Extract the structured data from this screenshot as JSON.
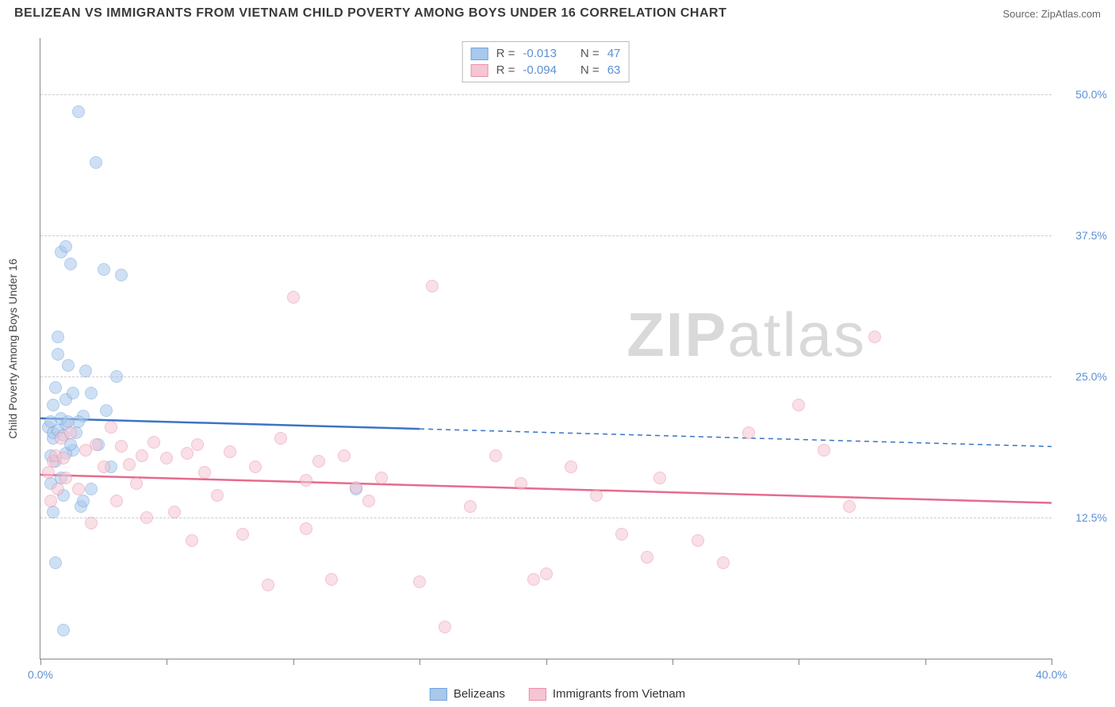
{
  "header": {
    "title": "BELIZEAN VS IMMIGRANTS FROM VIETNAM CHILD POVERTY AMONG BOYS UNDER 16 CORRELATION CHART",
    "source": "Source: ZipAtlas.com"
  },
  "watermark": {
    "part1": "ZIP",
    "part2": "atlas"
  },
  "chart": {
    "type": "scatter",
    "ylabel": "Child Poverty Among Boys Under 16",
    "xlim": [
      0,
      40
    ],
    "ylim": [
      0,
      55
    ],
    "x_ticks": [
      0,
      5,
      10,
      15,
      20,
      25,
      30,
      35,
      40
    ],
    "x_tick_labels": {
      "0": "0.0%",
      "40": "40.0%"
    },
    "y_gridlines": [
      12.5,
      25.0,
      37.5,
      50.0
    ],
    "y_tick_labels": [
      "12.5%",
      "25.0%",
      "37.5%",
      "50.0%"
    ],
    "background_color": "#ffffff",
    "grid_color": "#cccccc",
    "axis_color": "#888888",
    "tick_label_color": "#5b8fd6",
    "marker_radius": 8,
    "marker_opacity": 0.55,
    "series": [
      {
        "name": "Belizeans",
        "fill": "#a9c8ec",
        "stroke": "#6fa3dc",
        "line_color": "#3b74c4",
        "R": "-0.013",
        "N": "47",
        "trend": {
          "y_at_x0": 21.3,
          "y_at_x40": 18.8,
          "solid_until_x": 15
        },
        "points": [
          [
            0.3,
            20.5
          ],
          [
            0.4,
            21.0
          ],
          [
            0.5,
            19.5
          ],
          [
            0.5,
            22.5
          ],
          [
            0.6,
            17.5
          ],
          [
            0.6,
            24.0
          ],
          [
            0.7,
            27.0
          ],
          [
            0.7,
            28.5
          ],
          [
            0.8,
            16.0
          ],
          [
            0.8,
            36.0
          ],
          [
            0.9,
            14.5
          ],
          [
            1.0,
            36.5
          ],
          [
            1.0,
            23.0
          ],
          [
            1.1,
            26.0
          ],
          [
            1.2,
            35.0
          ],
          [
            1.3,
            18.5
          ],
          [
            1.4,
            20.0
          ],
          [
            1.5,
            48.5
          ],
          [
            1.6,
            13.5
          ],
          [
            1.7,
            21.5
          ],
          [
            1.8,
            25.5
          ],
          [
            2.0,
            15.0
          ],
          [
            2.2,
            44.0
          ],
          [
            2.3,
            19.0
          ],
          [
            2.5,
            34.5
          ],
          [
            2.6,
            22.0
          ],
          [
            2.8,
            17.0
          ],
          [
            3.0,
            25.0
          ],
          [
            3.2,
            34.0
          ],
          [
            1.0,
            20.8
          ],
          [
            0.6,
            8.5
          ],
          [
            0.9,
            2.5
          ],
          [
            1.3,
            23.5
          ],
          [
            1.5,
            21.0
          ],
          [
            0.4,
            18.0
          ],
          [
            0.5,
            20.0
          ],
          [
            0.7,
            20.2
          ],
          [
            0.8,
            21.3
          ],
          [
            0.9,
            19.8
          ],
          [
            1.0,
            18.2
          ],
          [
            1.1,
            21.0
          ],
          [
            1.2,
            19.0
          ],
          [
            0.4,
            15.5
          ],
          [
            0.5,
            13.0
          ],
          [
            2.0,
            23.5
          ],
          [
            1.7,
            14.0
          ],
          [
            12.5,
            15.0
          ]
        ]
      },
      {
        "name": "Immigrants from Vietnam",
        "fill": "#f5c5d3",
        "stroke": "#e98fa9",
        "line_color": "#e56b8c",
        "R": "-0.094",
        "N": "63",
        "trend": {
          "y_at_x0": 16.3,
          "y_at_x40": 13.8,
          "solid_until_x": 40
        },
        "points": [
          [
            0.5,
            17.5
          ],
          [
            0.6,
            18.0
          ],
          [
            0.8,
            19.5
          ],
          [
            1.0,
            16.0
          ],
          [
            1.2,
            20.0
          ],
          [
            1.5,
            15.0
          ],
          [
            1.8,
            18.5
          ],
          [
            2.0,
            12.0
          ],
          [
            2.2,
            19.0
          ],
          [
            2.5,
            17.0
          ],
          [
            2.8,
            20.5
          ],
          [
            3.0,
            14.0
          ],
          [
            3.2,
            18.8
          ],
          [
            3.5,
            17.2
          ],
          [
            3.8,
            15.5
          ],
          [
            4.0,
            18.0
          ],
          [
            4.2,
            12.5
          ],
          [
            4.5,
            19.2
          ],
          [
            5.0,
            17.8
          ],
          [
            5.3,
            13.0
          ],
          [
            5.8,
            18.2
          ],
          [
            6.0,
            10.5
          ],
          [
            6.2,
            19.0
          ],
          [
            6.5,
            16.5
          ],
          [
            7.0,
            14.5
          ],
          [
            7.5,
            18.3
          ],
          [
            8.0,
            11.0
          ],
          [
            8.5,
            17.0
          ],
          [
            9.0,
            6.5
          ],
          [
            9.5,
            19.5
          ],
          [
            10.0,
            32.0
          ],
          [
            10.5,
            15.8
          ],
          [
            10.5,
            11.5
          ],
          [
            11.0,
            17.5
          ],
          [
            11.5,
            7.0
          ],
          [
            12.0,
            18.0
          ],
          [
            12.5,
            15.2
          ],
          [
            13.0,
            14.0
          ],
          [
            13.5,
            16.0
          ],
          [
            15.0,
            6.8
          ],
          [
            15.5,
            33.0
          ],
          [
            16.0,
            2.8
          ],
          [
            17.0,
            13.5
          ],
          [
            18.0,
            18.0
          ],
          [
            19.0,
            15.5
          ],
          [
            19.5,
            7.0
          ],
          [
            20.0,
            7.5
          ],
          [
            21.0,
            17.0
          ],
          [
            22.0,
            14.5
          ],
          [
            23.0,
            11.0
          ],
          [
            24.0,
            9.0
          ],
          [
            24.5,
            16.0
          ],
          [
            26.0,
            10.5
          ],
          [
            27.0,
            8.5
          ],
          [
            28.0,
            20.0
          ],
          [
            30.0,
            22.5
          ],
          [
            31.0,
            18.5
          ],
          [
            32.0,
            13.5
          ],
          [
            33.0,
            28.5
          ],
          [
            0.3,
            16.5
          ],
          [
            0.4,
            14.0
          ],
          [
            0.7,
            15.0
          ],
          [
            0.9,
            17.8
          ]
        ]
      }
    ]
  },
  "legend_top": {
    "r_label": "R =",
    "n_label": "N ="
  },
  "legend_bottom": {
    "items": [
      "Belizeans",
      "Immigrants from Vietnam"
    ]
  }
}
